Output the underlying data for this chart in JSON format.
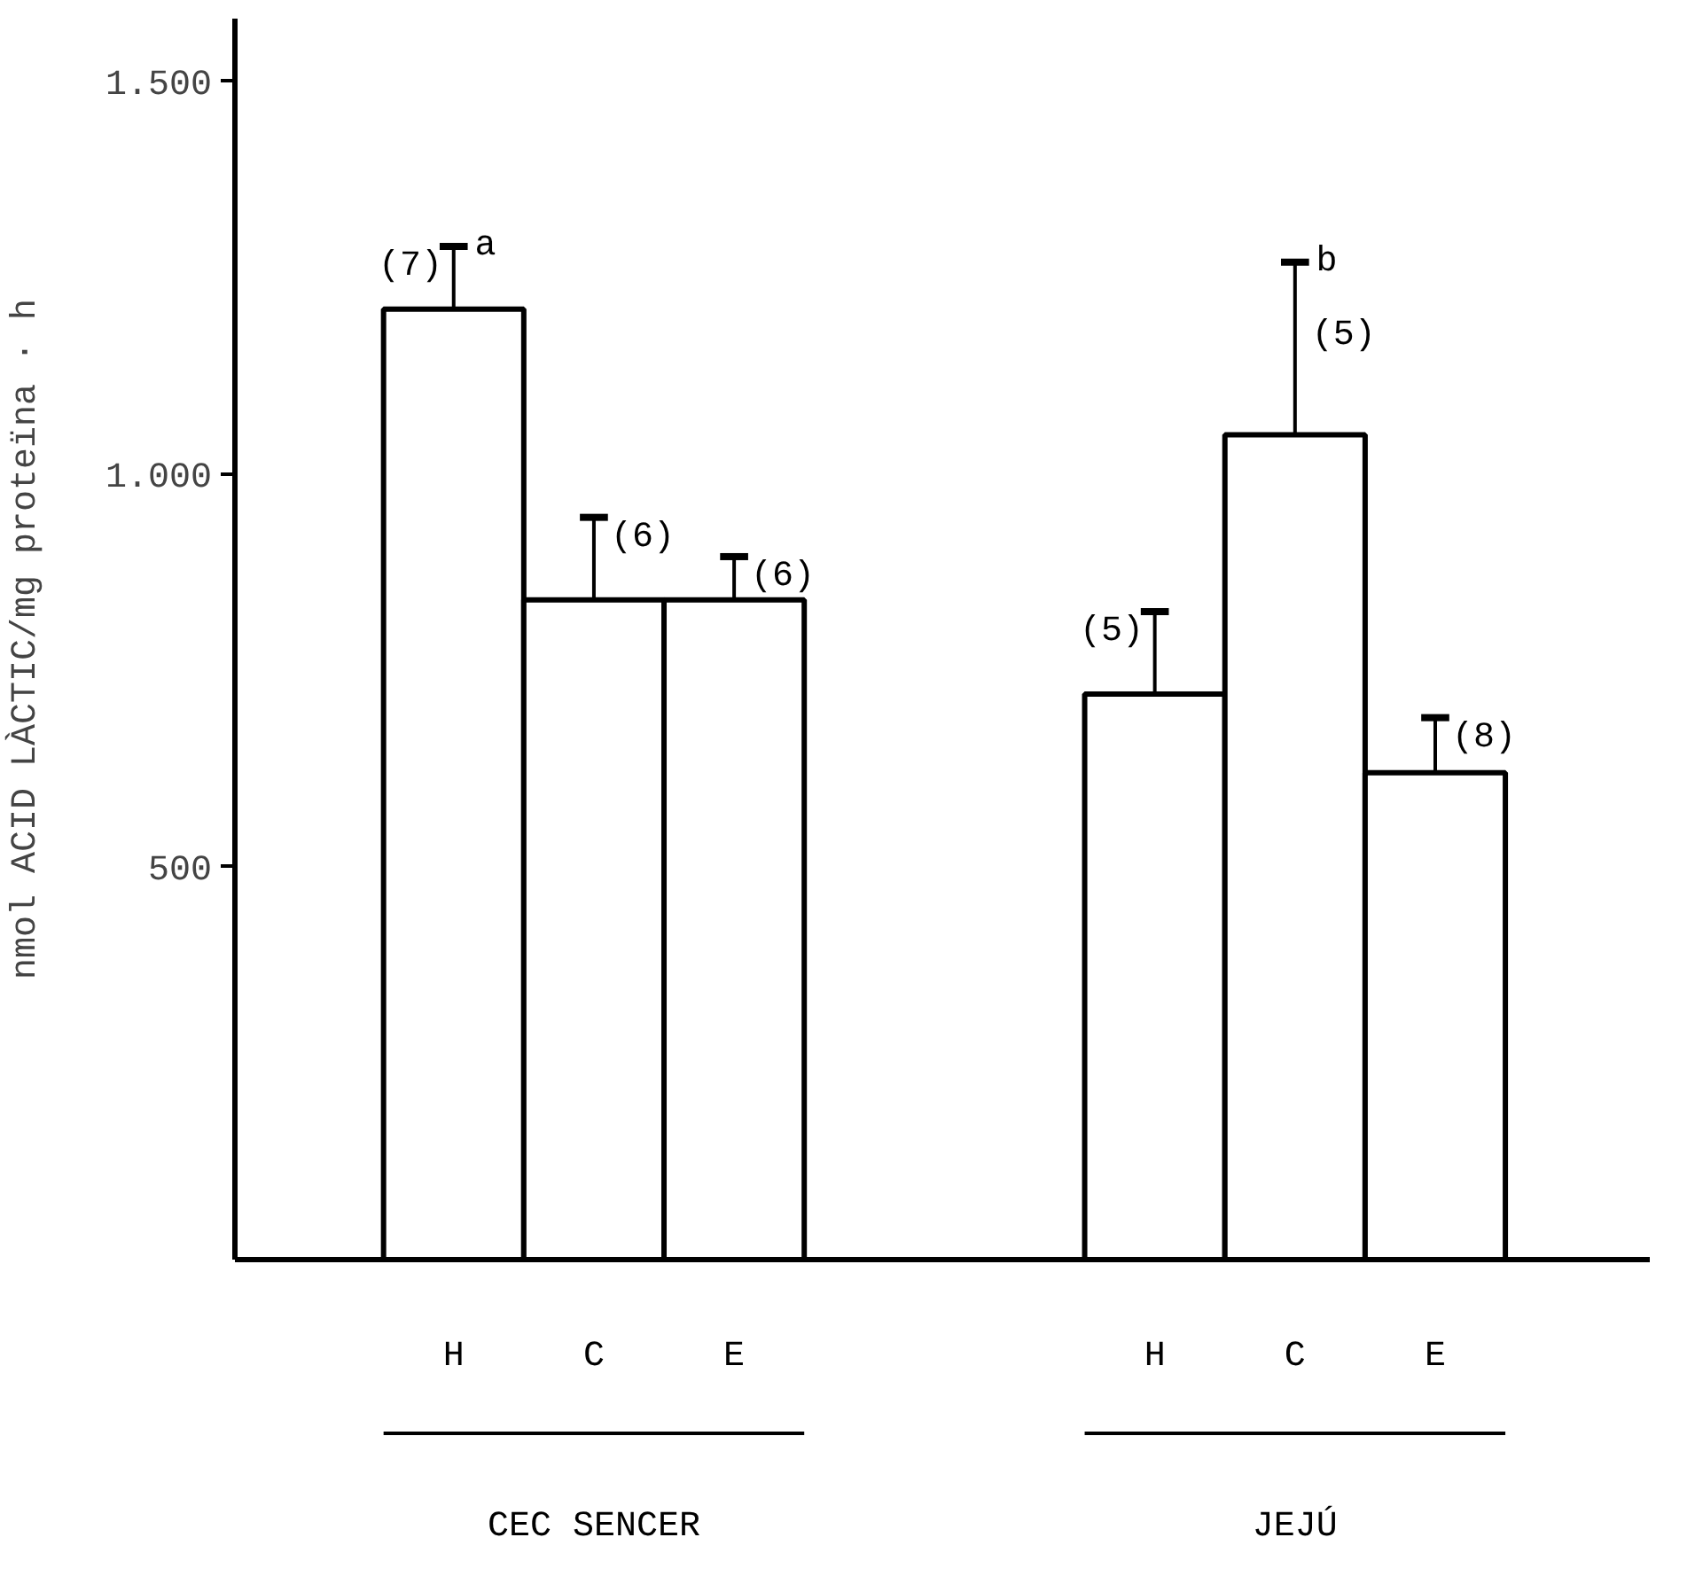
{
  "chart_data": {
    "type": "bar",
    "ylabel": "nmol ACID LÀCTIC/mg proteïna · h",
    "categories": [
      "H",
      "C",
      "E",
      "H",
      "C",
      "E"
    ],
    "values": [
      1210,
      840,
      840,
      720,
      1050,
      620
    ],
    "errors": [
      [
        1210,
        1290
      ],
      [
        840,
        945
      ],
      [
        840,
        895
      ],
      [
        720,
        825
      ],
      [
        1050,
        1270
      ],
      [
        620,
        690
      ]
    ],
    "color": "#ffffff",
    "ylim": [
      0,
      1580
    ],
    "yticks": [
      {
        "value": 500,
        "label": "500"
      },
      {
        "value": 1000,
        "label": "1.000"
      },
      {
        "value": 1500,
        "label": "1.500"
      }
    ],
    "annotations": [
      "(7)",
      "(6)",
      "(6)",
      "(5)",
      "(5)",
      "(8)",
      "a",
      "b",
      "CEC SENCER",
      "JEJÚ"
    ],
    "grid": false
  }
}
